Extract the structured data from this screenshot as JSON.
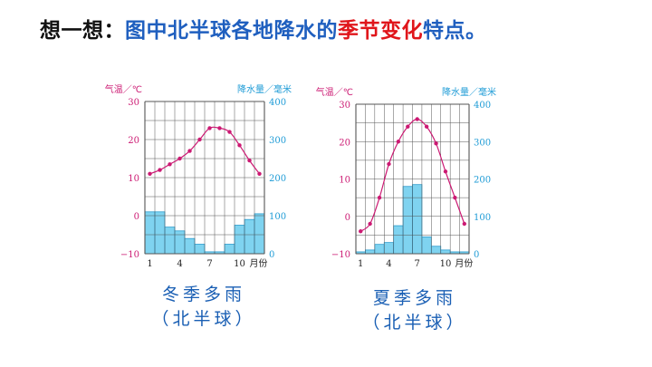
{
  "title": {
    "part1": "想一想：",
    "part2": "图中北半球各地降水的",
    "part3": "季节变化",
    "part4": "特点。"
  },
  "colors": {
    "temp_line": "#cc1a73",
    "precip_bar": "#7fd3f0",
    "precip_edge": "#2a9ccf",
    "axis_text_left": "#cc1a73",
    "axis_text_right": "#1d9bd6",
    "caption": "#1a5fb4"
  },
  "chart_data": [
    {
      "type": "bar+line",
      "caption": {
        "line1": "冬季多雨",
        "line2": "（北半球）"
      },
      "left_axis_label": "气温／℃",
      "right_axis_label": "降水量／毫米",
      "month_label": "月份",
      "x": [
        1,
        2,
        3,
        4,
        5,
        6,
        7,
        8,
        9,
        10,
        11,
        12
      ],
      "x_ticks": [
        "1",
        "4",
        "7",
        "10"
      ],
      "temp_ylim": [
        -10,
        30
      ],
      "temp_ticks": [
        "30",
        "20",
        "10",
        "0",
        "−10"
      ],
      "precip_ylim": [
        0,
        400
      ],
      "precip_ticks": [
        "400",
        "300",
        "200",
        "100",
        "0"
      ],
      "temperature": [
        11,
        12,
        13.5,
        15,
        17,
        20,
        23,
        23,
        22,
        18.5,
        14.5,
        11
      ],
      "precipitation": [
        110,
        110,
        70,
        60,
        40,
        25,
        5,
        5,
        25,
        75,
        90,
        105
      ]
    },
    {
      "type": "bar+line",
      "caption": {
        "line1": "夏季多雨",
        "line2": "（北半球）"
      },
      "left_axis_label": "气温／℃",
      "right_axis_label": "降水量／毫米",
      "month_label": "月份",
      "x": [
        1,
        2,
        3,
        4,
        5,
        6,
        7,
        8,
        9,
        10,
        11,
        12
      ],
      "x_ticks": [
        "1",
        "4",
        "7",
        "10"
      ],
      "temp_ylim": [
        -10,
        30
      ],
      "temp_ticks": [
        "30",
        "20",
        "10",
        "0",
        "−10"
      ],
      "precip_ylim": [
        0,
        400
      ],
      "precip_ticks": [
        "400",
        "300",
        "200",
        "100",
        "0"
      ],
      "temperature": [
        -4,
        -2,
        5,
        14,
        20,
        24,
        26,
        24,
        19.5,
        12,
        5,
        -2
      ],
      "precipitation": [
        5,
        10,
        25,
        30,
        75,
        180,
        185,
        45,
        20,
        10,
        5,
        5
      ]
    }
  ]
}
